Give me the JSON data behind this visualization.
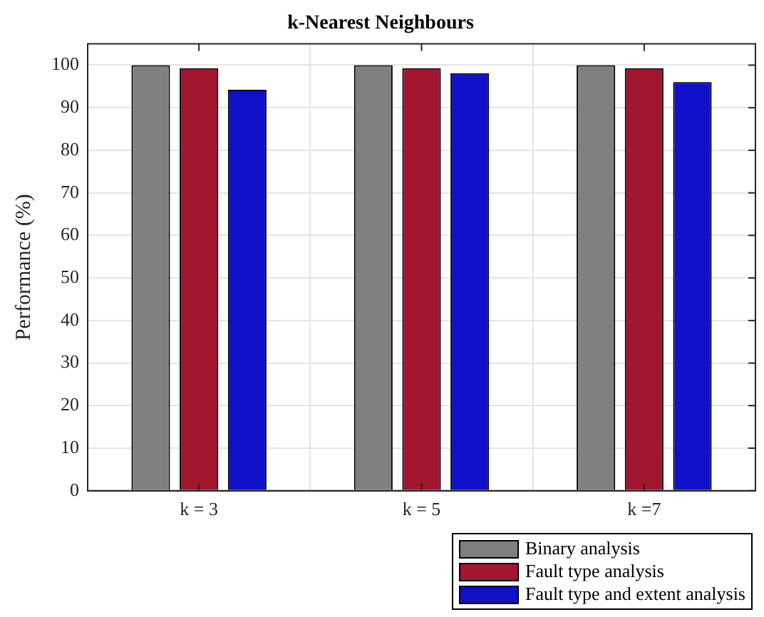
{
  "chart_data": {
    "type": "bar",
    "title": "k-Nearest Neighbours",
    "ylabel": "Performance (%)",
    "categories": [
      "k = 3",
      "k = 5",
      "k =7"
    ],
    "series": [
      {
        "name": "Binary analysis",
        "color": "#808080",
        "values": [
          100,
          100,
          100
        ]
      },
      {
        "name": "Fault type analysis",
        "color": "#a21630",
        "values": [
          99.3,
          99.3,
          99.3
        ]
      },
      {
        "name": "Fault type and extent analysis",
        "color": "#1010c8",
        "values": [
          94.2,
          98.1,
          96.0
        ]
      }
    ],
    "ylim": [
      0,
      105
    ],
    "yticks": [
      0,
      10,
      20,
      30,
      40,
      50,
      60,
      70,
      80,
      90,
      100
    ],
    "grid": true,
    "legend": "bottom right"
  }
}
